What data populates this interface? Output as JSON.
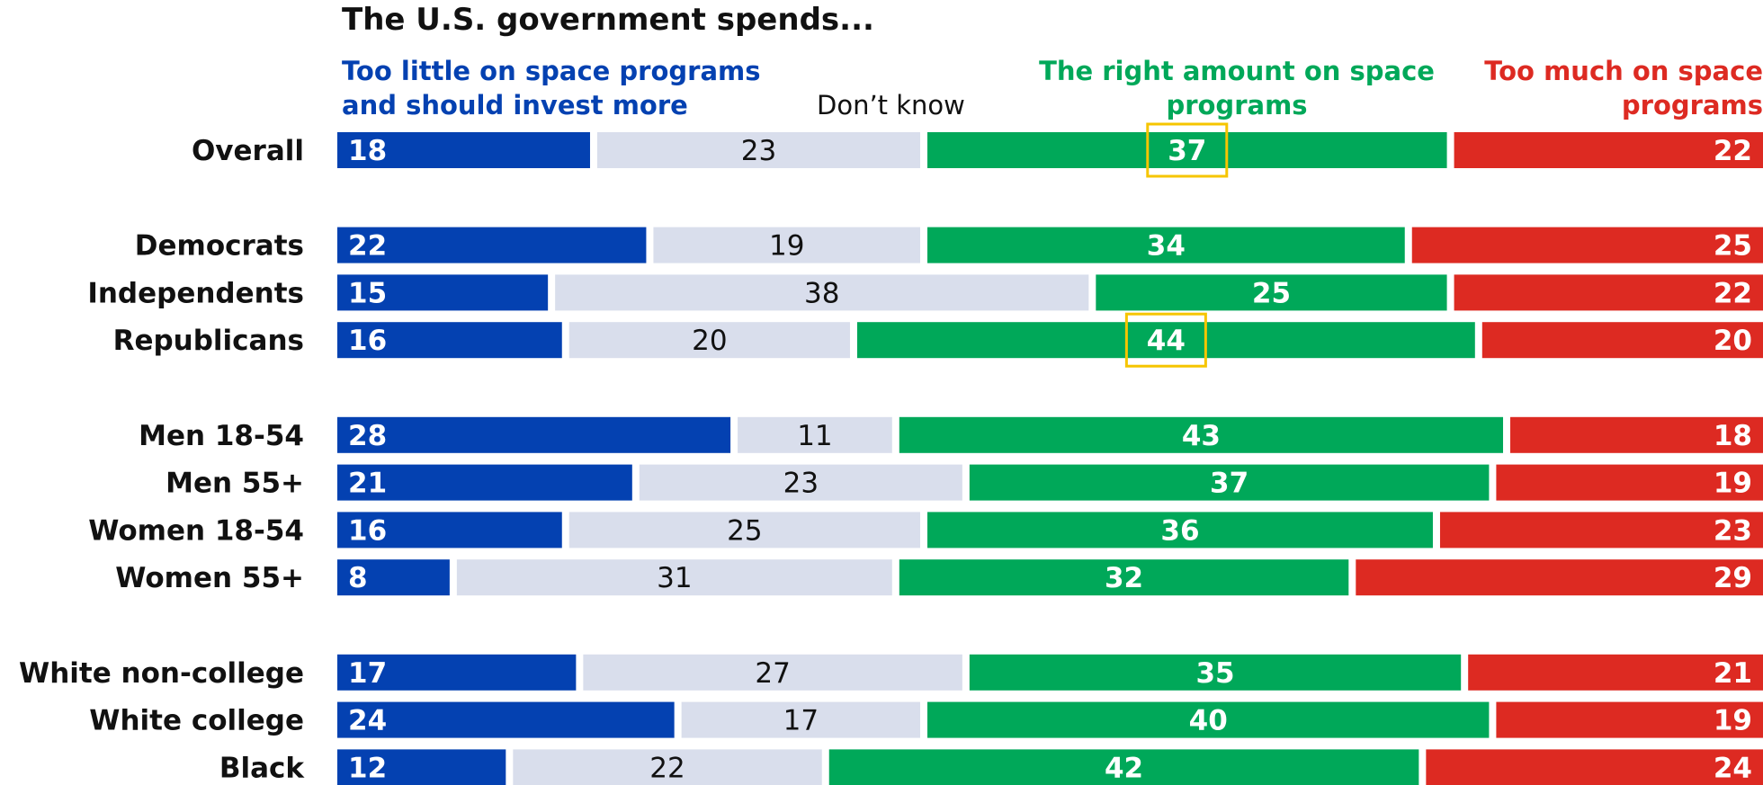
{
  "title": "The U.S. government spends...",
  "legend": {
    "too_little": "Too little on space programs and should invest more",
    "dont_know": "Don’t know",
    "right_amount": "The right amount on space programs",
    "too_much": "Too much on space programs"
  },
  "colors": {
    "too_little": "#0441b1",
    "dont_know": "#d9deec",
    "right_amount": "#00a859",
    "too_much": "#dd2a22",
    "highlight": "#f6c500"
  },
  "chart_data": {
    "type": "bar",
    "orientation": "horizontal-stacked",
    "title": "The U.S. government spends...",
    "xlabel": "",
    "ylabel": "",
    "xlim": [
      0,
      100
    ],
    "categories": [
      "Overall",
      "Democrats",
      "Independents",
      "Republicans",
      "Men 18-54",
      "Men 55+",
      "Women 18-54",
      "Women 55+",
      "White non-college",
      "White college",
      "Black"
    ],
    "groups": [
      [
        0
      ],
      [
        1,
        2,
        3
      ],
      [
        4,
        5,
        6,
        7
      ],
      [
        8,
        9,
        10
      ]
    ],
    "series": [
      {
        "name": "Too little on space programs and should invest more",
        "values": [
          18,
          22,
          15,
          16,
          28,
          21,
          16,
          8,
          17,
          24,
          12
        ]
      },
      {
        "name": "Don’t know",
        "values": [
          23,
          19,
          38,
          20,
          11,
          23,
          25,
          31,
          27,
          17,
          22
        ]
      },
      {
        "name": "The right amount on space programs",
        "values": [
          37,
          34,
          25,
          44,
          43,
          37,
          36,
          32,
          35,
          40,
          42
        ]
      },
      {
        "name": "Too much on space programs",
        "values": [
          22,
          25,
          22,
          20,
          18,
          19,
          23,
          29,
          21,
          19,
          24
        ]
      }
    ],
    "highlighted": [
      {
        "category": "Overall",
        "series": 2
      },
      {
        "category": "Republicans",
        "series": 2
      }
    ],
    "grid": false,
    "legend_position": "top"
  }
}
